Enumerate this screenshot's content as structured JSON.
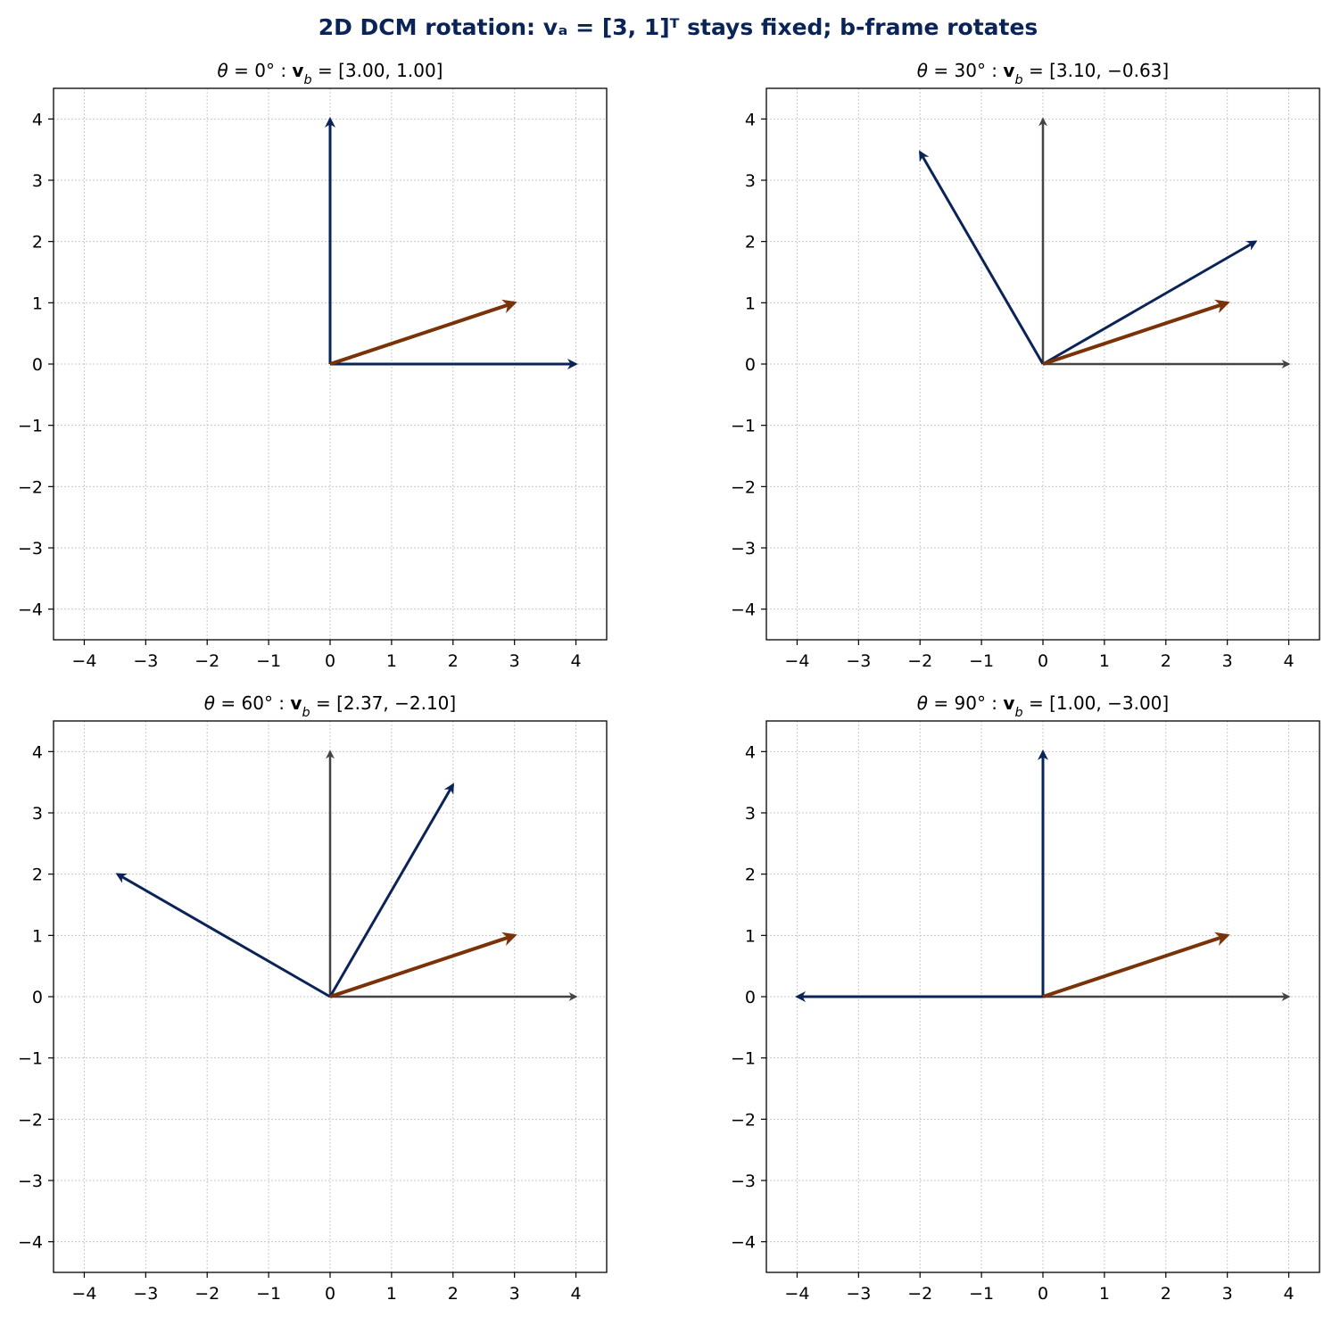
{
  "figure": {
    "title": "2D DCM rotation: vₐ = [3, 1]ᵀ stays fixed; b-frame rotates"
  },
  "colors": {
    "title": "#0a2458",
    "b_frame": "#0a2458",
    "a_frame": "#444444",
    "vector": "#7a3208"
  },
  "chart_data": [
    {
      "type": "line",
      "title": "θ = 0° : v_b = [3.00, 1.00]",
      "xlim": [
        -4.5,
        4.5
      ],
      "ylim": [
        -4.5,
        4.5
      ],
      "xticks": [
        -4,
        -3,
        -2,
        -1,
        0,
        1,
        2,
        3,
        4
      ],
      "yticks": [
        -4,
        -3,
        -2,
        -1,
        0,
        1,
        2,
        3,
        4
      ],
      "grid": true,
      "theta_deg": 0,
      "a_frame_axes": [
        [
          4,
          0
        ],
        [
          0,
          4
        ]
      ],
      "b_frame_axes": [
        [
          4,
          0
        ],
        [
          0,
          4
        ]
      ],
      "vector_va": [
        3,
        1
      ],
      "v_b": [
        3.0,
        1.0
      ]
    },
    {
      "type": "line",
      "title": "θ = 30° : v_b = [3.10, −0.63]",
      "xlim": [
        -4.5,
        4.5
      ],
      "ylim": [
        -4.5,
        4.5
      ],
      "xticks": [
        -4,
        -3,
        -2,
        -1,
        0,
        1,
        2,
        3,
        4
      ],
      "yticks": [
        -4,
        -3,
        -2,
        -1,
        0,
        1,
        2,
        3,
        4
      ],
      "grid": true,
      "theta_deg": 30,
      "a_frame_axes": [
        [
          4,
          0
        ],
        [
          0,
          4
        ]
      ],
      "b_frame_axes": [
        [
          3.46,
          2.0
        ],
        [
          -2.0,
          3.46
        ]
      ],
      "vector_va": [
        3,
        1
      ],
      "v_b": [
        3.1,
        -0.63
      ]
    },
    {
      "type": "line",
      "title": "θ = 60° : v_b = [2.37, −2.10]",
      "xlim": [
        -4.5,
        4.5
      ],
      "ylim": [
        -4.5,
        4.5
      ],
      "xticks": [
        -4,
        -3,
        -2,
        -1,
        0,
        1,
        2,
        3,
        4
      ],
      "yticks": [
        -4,
        -3,
        -2,
        -1,
        0,
        1,
        2,
        3,
        4
      ],
      "grid": true,
      "theta_deg": 60,
      "a_frame_axes": [
        [
          4,
          0
        ],
        [
          0,
          4
        ]
      ],
      "b_frame_axes": [
        [
          2.0,
          3.46
        ],
        [
          -3.46,
          2.0
        ]
      ],
      "vector_va": [
        3,
        1
      ],
      "v_b": [
        2.37,
        -2.1
      ]
    },
    {
      "type": "line",
      "title": "θ = 90° : v_b = [1.00, −3.00]",
      "xlim": [
        -4.5,
        4.5
      ],
      "ylim": [
        -4.5,
        4.5
      ],
      "xticks": [
        -4,
        -3,
        -2,
        -1,
        0,
        1,
        2,
        3,
        4
      ],
      "yticks": [
        -4,
        -3,
        -2,
        -1,
        0,
        1,
        2,
        3,
        4
      ],
      "grid": true,
      "theta_deg": 90,
      "a_frame_axes": [
        [
          4,
          0
        ],
        [
          0,
          4
        ]
      ],
      "b_frame_axes": [
        [
          0,
          4
        ],
        [
          -4,
          0
        ]
      ],
      "vector_va": [
        3,
        1
      ],
      "v_b": [
        1.0,
        -3.0
      ]
    }
  ]
}
